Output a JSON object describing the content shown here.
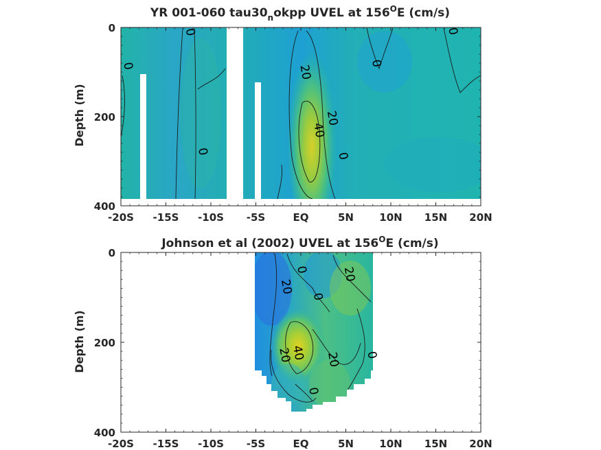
{
  "chart_data": [
    {
      "type": "heatmap",
      "title": "YR 001-060 tau30",
      "title_subscript": "n",
      "title_rest": "okpp UVEL at 156",
      "title_sup": "O",
      "title_end": "E (cm/s)",
      "ylabel": "Depth (m)",
      "xlim": [
        -20,
        20
      ],
      "ylim": [
        0,
        400
      ],
      "y_reversed": true,
      "x_ticks": [
        -20,
        -15,
        -10,
        -5,
        0,
        5,
        10,
        15,
        20
      ],
      "x_tick_labels": [
        "-20S",
        "-15S",
        "-10S",
        "-5S",
        "EQ",
        "5N",
        "10N",
        "15N",
        "20N"
      ],
      "y_ticks": [
        0,
        200,
        400
      ],
      "y_tick_labels": [
        "0",
        "200",
        "400"
      ],
      "data_extent": {
        "x": [
          -20,
          20
        ],
        "depth": [
          0,
          385
        ]
      },
      "data_gaps": [
        {
          "x": [
            -17.9,
            -17.2
          ],
          "depth": [
            105,
            385
          ]
        },
        {
          "x": [
            -7.6,
            -5.8
          ],
          "depth": [
            0,
            385
          ]
        },
        {
          "x": [
            -5.8,
            -5.1
          ],
          "depth": [
            120,
            385
          ]
        }
      ],
      "jet_core": {
        "center_x": 1.8,
        "center_depth": 220,
        "max_velocity": 45
      },
      "contour_levels": [
        0,
        20,
        40
      ],
      "contour_labels": [
        {
          "text": "0",
          "x": -12.7,
          "depth": 12
        },
        {
          "text": "0",
          "x": -19.6,
          "depth": 88
        },
        {
          "text": "0",
          "x": -11.3,
          "depth": 280
        },
        {
          "text": "20",
          "x": 0.1,
          "depth": 102
        },
        {
          "text": "20",
          "x": 3.1,
          "depth": 205
        },
        {
          "text": "40",
          "x": 1.6,
          "depth": 232
        },
        {
          "text": "0",
          "x": 4.3,
          "depth": 290
        },
        {
          "text": "0",
          "x": 8.0,
          "depth": 82
        },
        {
          "text": "0",
          "x": 16.5,
          "depth": 10
        }
      ]
    },
    {
      "type": "heatmap",
      "title": "Johnson et al (2002) UVEL at 156",
      "title_sup": "O",
      "title_end": "E (cm/s)",
      "ylabel": "Depth (m)",
      "xlim": [
        -20,
        20
      ],
      "ylim": [
        0,
        400
      ],
      "y_reversed": true,
      "x_ticks": [
        -20,
        -15,
        -10,
        -5,
        0,
        5,
        10,
        15,
        20
      ],
      "x_tick_labels": [
        "-20S",
        "-15S",
        "-10S",
        "-5S",
        "EQ",
        "5N",
        "10N",
        "15N",
        "20N"
      ],
      "y_ticks": [
        0,
        200,
        400
      ],
      "y_tick_labels": [
        "0",
        "200",
        "400"
      ],
      "data_extent": {
        "x": [
          -5,
          8
        ],
        "depth": [
          0,
          355
        ]
      },
      "jet_core": {
        "center_x": -0.3,
        "center_depth": 205,
        "max_velocity": 45
      },
      "contour_levels": [
        0,
        20,
        40
      ],
      "contour_labels": [
        {
          "text": "0",
          "x": -0.3,
          "depth": 40
        },
        {
          "text": "20",
          "x": -2.0,
          "depth": 78
        },
        {
          "text": "20",
          "x": 5.0,
          "depth": 50
        },
        {
          "text": "0",
          "x": 1.5,
          "depth": 100
        },
        {
          "text": "40",
          "x": -0.7,
          "depth": 225
        },
        {
          "text": "20",
          "x": -2.2,
          "depth": 230
        },
        {
          "text": "20",
          "x": 3.2,
          "depth": 240
        },
        {
          "text": "0",
          "x": 7.5,
          "depth": 230
        },
        {
          "text": "0",
          "x": 1.0,
          "depth": 310
        }
      ]
    }
  ]
}
